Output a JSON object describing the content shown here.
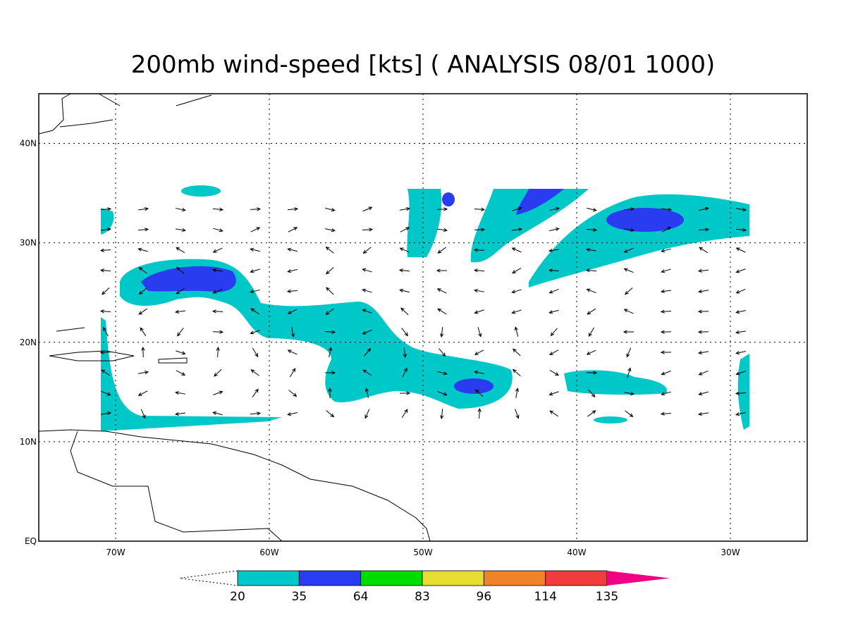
{
  "title": "200mb wind-speed [kts] ( ANALYSIS 08/01 1000)",
  "map": {
    "lon_range": [
      -75,
      -25
    ],
    "lat_range": [
      0,
      45
    ],
    "lon_ticks": [
      {
        "value": -70,
        "label": "70W"
      },
      {
        "value": -60,
        "label": "60W"
      },
      {
        "value": -50,
        "label": "50W"
      },
      {
        "value": -40,
        "label": "40W"
      },
      {
        "value": -30,
        "label": "30W"
      }
    ],
    "lat_ticks": [
      {
        "value": 40,
        "label": "40N"
      },
      {
        "value": 30,
        "label": "30N"
      },
      {
        "value": 20,
        "label": "20N"
      },
      {
        "value": 10,
        "label": "10N"
      },
      {
        "value": 0,
        "label": "EQ"
      }
    ]
  },
  "colorbar": {
    "levels": [
      20,
      35,
      64,
      83,
      96,
      114,
      135
    ],
    "colors": [
      "#00c8c8",
      "#2a3cf0",
      "#00dc00",
      "#e6dc32",
      "#f08228",
      "#f03c3c",
      "#f00082"
    ]
  }
}
